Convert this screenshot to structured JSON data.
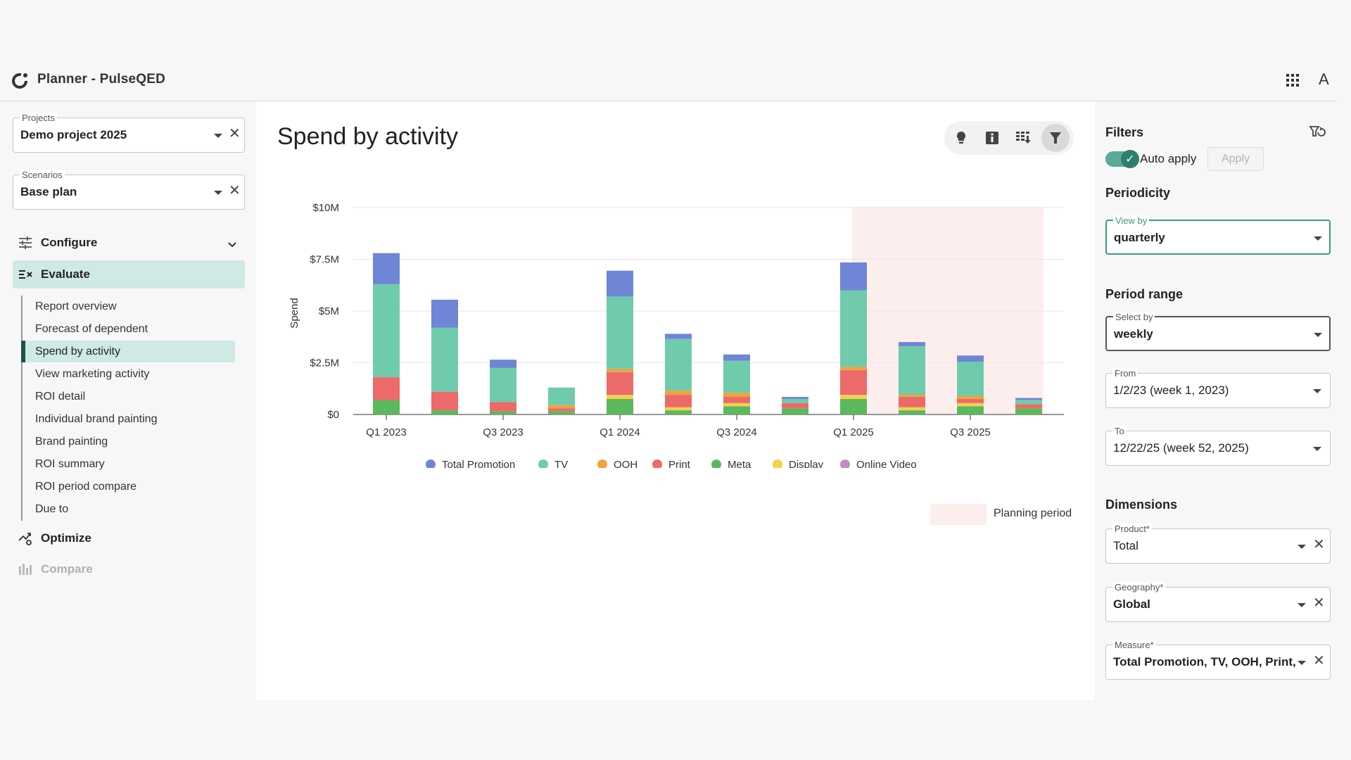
{
  "app": {
    "title": "Planner  -  PulseQED",
    "avatar": "A"
  },
  "sidebar": {
    "projects": {
      "label": "Projects",
      "value": "Demo project 2025"
    },
    "scenarios": {
      "label": "Scenarios",
      "value": "Base plan"
    },
    "nav": [
      {
        "label": "Configure",
        "icon": "sliders-icon"
      },
      {
        "label": "Evaluate",
        "icon": "evaluate-icon"
      },
      {
        "label": "Optimize",
        "icon": "optimize-icon"
      },
      {
        "label": "Compare",
        "icon": "compare-icon"
      }
    ],
    "sub_items": [
      "Report overview",
      "Forecast of dependent",
      "Spend by activity",
      "View marketing activity",
      "ROI detail",
      "Individual brand painting",
      "Brand painting",
      "ROI summary",
      "ROI period compare",
      "Due to"
    ]
  },
  "main": {
    "title": "Spend by activity",
    "toolbar": [
      "lightbulb-icon",
      "info-icon",
      "download-icon",
      "filter-icon"
    ]
  },
  "colors": {
    "Total Promotion": "#6f86d6",
    "TV": "#6fcbac",
    "OOH": "#f0a33a",
    "Print": "#ec6a6a",
    "Meta": "#5cb85c",
    "Display": "#f2d14c",
    "Online Video": "#c38bc0",
    "planning": "#fdeeee"
  },
  "chart_data": {
    "type": "bar",
    "stacked": true,
    "ylabel": "Spend",
    "ylim": [
      0,
      10000000
    ],
    "yticks": [
      "$0",
      "$2.5M",
      "$5M",
      "$7.5M",
      "$10M"
    ],
    "xtick_labels": [
      "Q1 2023",
      "Q3 2023",
      "Q1 2024",
      "Q3 2024",
      "Q1 2025",
      "Q3 2025"
    ],
    "categories": [
      "Q1 2023",
      "Q2 2023",
      "Q3 2023",
      "Q4 2023",
      "Q1 2024",
      "Q2 2024",
      "Q3 2024",
      "Q4 2024",
      "Q1 2025",
      "Q2 2025",
      "Q3 2025",
      "Q4 2025"
    ],
    "series": [
      {
        "name": "Meta",
        "values": [
          700000,
          200000,
          150000,
          150000,
          750000,
          200000,
          400000,
          300000,
          750000,
          200000,
          400000,
          300000
        ]
      },
      {
        "name": "Display",
        "values": [
          0,
          0,
          0,
          0,
          200000,
          150000,
          150000,
          0,
          200000,
          150000,
          150000,
          0
        ]
      },
      {
        "name": "Print",
        "values": [
          1100000,
          900000,
          450000,
          150000,
          1100000,
          600000,
          300000,
          250000,
          1200000,
          500000,
          200000,
          200000
        ]
      },
      {
        "name": "OOH",
        "values": [
          0,
          0,
          0,
          150000,
          150000,
          200000,
          200000,
          0,
          150000,
          100000,
          150000,
          0
        ]
      },
      {
        "name": "TV",
        "values": [
          4500000,
          3100000,
          1650000,
          850000,
          3500000,
          2500000,
          1550000,
          200000,
          3700000,
          2350000,
          1650000,
          200000
        ]
      },
      {
        "name": "Total Promotion",
        "values": [
          1500000,
          1350000,
          400000,
          0,
          1250000,
          250000,
          300000,
          100000,
          1350000,
          200000,
          300000,
          100000
        ]
      },
      {
        "name": "Online Video",
        "values": [
          0,
          0,
          0,
          0,
          0,
          0,
          0,
          0,
          0,
          0,
          0,
          0
        ]
      }
    ],
    "legend": [
      "Total Promotion",
      "TV",
      "OOH",
      "Print",
      "Meta",
      "Display",
      "Online Video"
    ],
    "planning_period": {
      "label": "Planning period",
      "from": "Q1 2025",
      "to": "Q4 2025"
    }
  },
  "filters": {
    "title": "Filters",
    "auto_apply": "Auto apply",
    "apply": "Apply",
    "periodicity": {
      "title": "Periodicity",
      "view_by": {
        "label": "View by",
        "value": "quarterly"
      }
    },
    "period_range": {
      "title": "Period range",
      "select_by": {
        "label": "Select by",
        "value": "weekly"
      },
      "from": {
        "label": "From",
        "value": "1/2/23 (week 1, 2023)"
      },
      "to": {
        "label": "To",
        "value": "12/22/25 (week 52, 2025)"
      }
    },
    "dimensions": {
      "title": "Dimensions",
      "product": {
        "label": "Product*",
        "value": "Total"
      },
      "geography": {
        "label": "Geography*",
        "value": "Global"
      },
      "measure": {
        "label": "Measure*",
        "value": "Total Promotion, TV, OOH, Print, ..."
      }
    }
  }
}
